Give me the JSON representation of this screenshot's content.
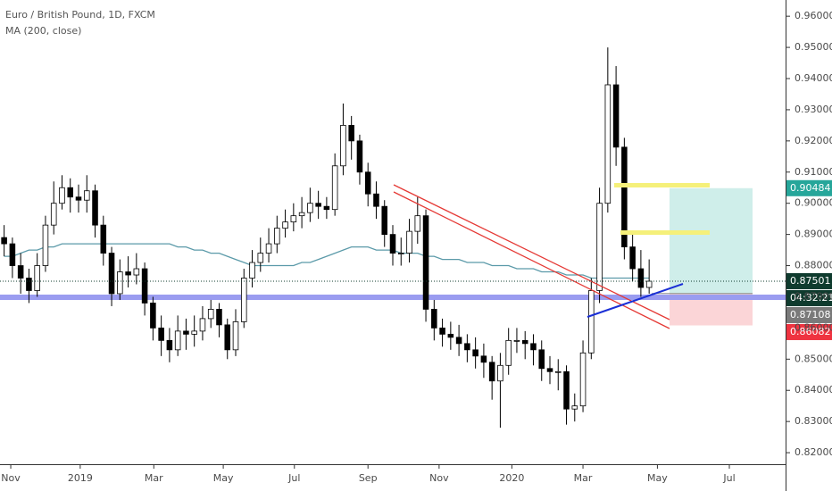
{
  "chart_data": {
    "type": "candlestick",
    "title": "Euro / British Pound, 1D, FXCM",
    "indicator_label": "MA (200, close)",
    "open": [
      0.889,
      0.887,
      0.88,
      0.876,
      0.872,
      0.88,
      0.893,
      0.9,
      0.905,
      0.902,
      0.901,
      0.904,
      0.893,
      0.884,
      0.871,
      0.878,
      0.877,
      0.879,
      0.868,
      0.86,
      0.856,
      0.853,
      0.859,
      0.858,
      0.859,
      0.863,
      0.866,
      0.861,
      0.853,
      0.862,
      0.876,
      0.881,
      0.884,
      0.887,
      0.892,
      0.894,
      0.896,
      0.897,
      0.9,
      0.899,
      0.898,
      0.912,
      0.925,
      0.92,
      0.91,
      0.903,
      0.899,
      0.89,
      0.884,
      0.884,
      0.891,
      0.896,
      0.866,
      0.86,
      0.858,
      0.857,
      0.855,
      0.853,
      0.851,
      0.849,
      0.843,
      0.848,
      0.856,
      0.856,
      0.855,
      0.853,
      0.847,
      0.846,
      0.846,
      0.834,
      0.835,
      0.852,
      0.872,
      0.9,
      0.938,
      0.918,
      0.886,
      0.879,
      0.873
    ],
    "high": [
      0.893,
      0.889,
      0.884,
      0.879,
      0.884,
      0.896,
      0.907,
      0.909,
      0.908,
      0.906,
      0.909,
      0.906,
      0.896,
      0.886,
      0.882,
      0.883,
      0.884,
      0.881,
      0.87,
      0.864,
      0.86,
      0.864,
      0.863,
      0.864,
      0.867,
      0.869,
      0.868,
      0.863,
      0.866,
      0.879,
      0.885,
      0.889,
      0.892,
      0.896,
      0.898,
      0.9,
      0.902,
      0.905,
      0.904,
      0.902,
      0.916,
      0.932,
      0.928,
      0.922,
      0.913,
      0.907,
      0.901,
      0.893,
      0.889,
      0.895,
      0.902,
      0.898,
      0.869,
      0.863,
      0.862,
      0.861,
      0.858,
      0.857,
      0.855,
      0.851,
      0.852,
      0.86,
      0.86,
      0.859,
      0.858,
      0.856,
      0.851,
      0.85,
      0.848,
      0.839,
      0.856,
      0.876,
      0.905,
      0.95,
      0.944,
      0.921,
      0.89,
      0.885,
      0.882
    ],
    "low": [
      0.883,
      0.876,
      0.871,
      0.868,
      0.87,
      0.878,
      0.89,
      0.898,
      0.897,
      0.897,
      0.897,
      0.889,
      0.88,
      0.867,
      0.869,
      0.873,
      0.874,
      0.864,
      0.856,
      0.851,
      0.849,
      0.851,
      0.853,
      0.854,
      0.856,
      0.86,
      0.857,
      0.85,
      0.851,
      0.86,
      0.873,
      0.878,
      0.881,
      0.884,
      0.889,
      0.891,
      0.892,
      0.894,
      0.895,
      0.895,
      0.896,
      0.909,
      0.914,
      0.906,
      0.899,
      0.895,
      0.886,
      0.88,
      0.88,
      0.881,
      0.887,
      0.862,
      0.856,
      0.854,
      0.853,
      0.851,
      0.849,
      0.847,
      0.844,
      0.837,
      0.828,
      0.845,
      0.852,
      0.85,
      0.848,
      0.843,
      0.842,
      0.84,
      0.829,
      0.83,
      0.833,
      0.85,
      0.868,
      0.897,
      0.912,
      0.882,
      0.875,
      0.87,
      0.871
    ],
    "close": [
      0.887,
      0.88,
      0.876,
      0.872,
      0.88,
      0.893,
      0.9,
      0.905,
      0.902,
      0.901,
      0.904,
      0.893,
      0.884,
      0.871,
      0.878,
      0.877,
      0.879,
      0.868,
      0.86,
      0.856,
      0.853,
      0.859,
      0.858,
      0.859,
      0.863,
      0.866,
      0.861,
      0.853,
      0.862,
      0.876,
      0.881,
      0.884,
      0.887,
      0.892,
      0.894,
      0.896,
      0.897,
      0.9,
      0.899,
      0.898,
      0.912,
      0.925,
      0.92,
      0.91,
      0.903,
      0.899,
      0.89,
      0.884,
      0.884,
      0.891,
      0.896,
      0.866,
      0.86,
      0.858,
      0.857,
      0.855,
      0.853,
      0.851,
      0.849,
      0.843,
      0.848,
      0.856,
      0.856,
      0.855,
      0.853,
      0.847,
      0.846,
      0.846,
      0.834,
      0.835,
      0.852,
      0.872,
      0.9,
      0.938,
      0.918,
      0.886,
      0.879,
      0.873,
      0.875
    ],
    "ma": {
      "color": "#5b9aa9",
      "values": [
        0.883,
        0.883,
        0.884,
        0.885,
        0.885,
        0.886,
        0.886,
        0.887,
        0.887,
        0.887,
        0.887,
        0.887,
        0.887,
        0.887,
        0.887,
        0.887,
        0.887,
        0.887,
        0.887,
        0.887,
        0.887,
        0.886,
        0.886,
        0.885,
        0.885,
        0.884,
        0.884,
        0.883,
        0.882,
        0.881,
        0.88,
        0.88,
        0.88,
        0.88,
        0.88,
        0.88,
        0.881,
        0.881,
        0.882,
        0.883,
        0.884,
        0.885,
        0.886,
        0.886,
        0.886,
        0.885,
        0.885,
        0.885,
        0.884,
        0.884,
        0.884,
        0.883,
        0.883,
        0.882,
        0.882,
        0.882,
        0.881,
        0.881,
        0.881,
        0.88,
        0.88,
        0.88,
        0.879,
        0.879,
        0.879,
        0.878,
        0.878,
        0.878,
        0.877,
        0.877,
        0.877,
        0.876,
        0.876,
        0.876,
        0.876,
        0.876,
        0.876,
        0.876,
        0.876
      ]
    },
    "up_color": "#ffffff",
    "down_color": "#000000",
    "xlim": [
      -0.5,
      94.5
    ],
    "xticks": [
      {
        "value": 0.8,
        "label": "Nov"
      },
      {
        "value": 9.2,
        "label": "2019"
      },
      {
        "value": 18.1,
        "label": "Mar"
      },
      {
        "value": 26.5,
        "label": "May"
      },
      {
        "value": 35.1,
        "label": "Jul"
      },
      {
        "value": 44,
        "label": "Sep"
      },
      {
        "value": 52.6,
        "label": "Nov"
      },
      {
        "value": 61.4,
        "label": "2020"
      },
      {
        "value": 70.0,
        "label": "Mar"
      },
      {
        "value": 79.0,
        "label": "May"
      },
      {
        "value": 87.7,
        "label": "Jul"
      }
    ],
    "ylim": [
      0.8163,
      0.9652
    ],
    "yticks": [
      {
        "value": 0.96,
        "label": "0.96000"
      },
      {
        "value": 0.95,
        "label": "0.95000"
      },
      {
        "value": 0.94,
        "label": "0.94000"
      },
      {
        "value": 0.93,
        "label": "0.93000"
      },
      {
        "value": 0.92,
        "label": "0.92000"
      },
      {
        "value": 0.91,
        "label": "0.91000"
      },
      {
        "value": 0.9,
        "label": "0.90000"
      },
      {
        "value": 0.89,
        "label": "0.89000"
      },
      {
        "value": 0.88,
        "label": "0.88000"
      },
      {
        "value": 0.87,
        "label": "0.87000"
      },
      {
        "value": 0.86,
        "label": "0.86000"
      },
      {
        "value": 0.85,
        "label": "0.85000"
      },
      {
        "value": 0.84,
        "label": "0.84000"
      },
      {
        "value": 0.83,
        "label": "0.83000"
      },
      {
        "value": 0.82,
        "label": "0.82000"
      }
    ],
    "last_price": 0.87501,
    "countdown": "04:32:21",
    "position": {
      "target": 0.90484,
      "entry": 0.87108,
      "stop": 0.86082
    }
  }
}
